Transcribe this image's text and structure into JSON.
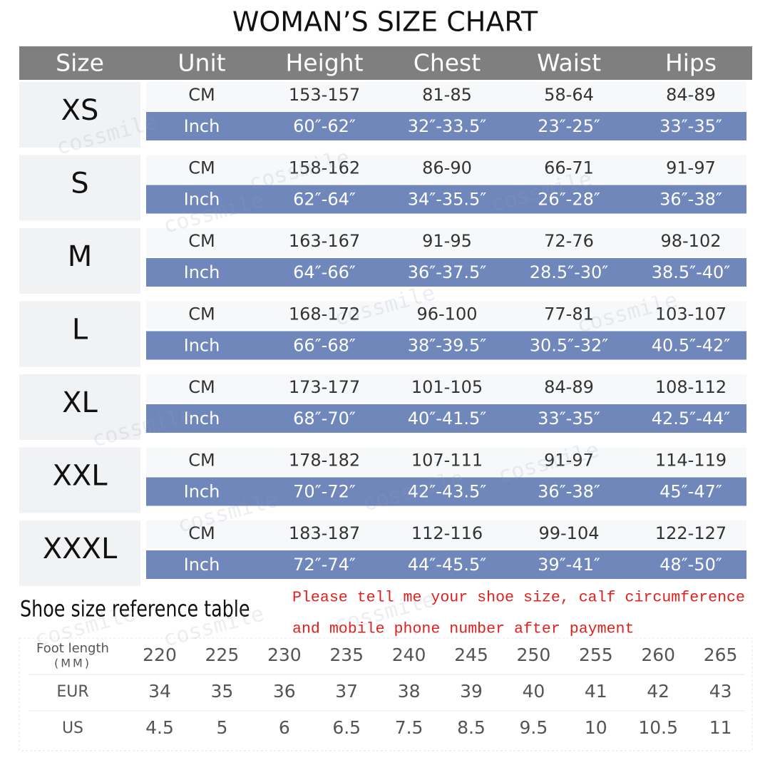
{
  "title": "WOMAN’S SIZE CHART",
  "watermark": "cossmile",
  "size_table": {
    "header": [
      "Size",
      "Unit",
      "Height",
      "Chest",
      "Waist",
      "Hips"
    ],
    "rows": [
      {
        "size": "XS",
        "cm_unit": "CM",
        "cm": [
          "153-157",
          "81-85",
          "58-64",
          "84-89"
        ],
        "inch_unit": "Inch",
        "inch": [
          "60″-62″",
          "32″-33.5″",
          "23″-25″",
          "33″-35″"
        ]
      },
      {
        "size": "S",
        "cm_unit": "CM",
        "cm": [
          "158-162",
          "86-90",
          "66-71",
          "91-97"
        ],
        "inch_unit": "Inch",
        "inch": [
          "62″-64″",
          "34″-35.5″",
          "26″-28″",
          "36″-38″"
        ]
      },
      {
        "size": "M",
        "cm_unit": "CM",
        "cm": [
          "163-167",
          "91-95",
          "72-76",
          "98-102"
        ],
        "inch_unit": "Inch",
        "inch": [
          "64″-66″",
          "36″-37.5″",
          "28.5″-30″",
          "38.5″-40″"
        ]
      },
      {
        "size": "L",
        "cm_unit": "CM",
        "cm": [
          "168-172",
          "96-100",
          "77-81",
          "103-107"
        ],
        "inch_unit": "Inch",
        "inch": [
          "66″-68″",
          "38″-39.5″",
          "30.5″-32″",
          "40.5″-42″"
        ]
      },
      {
        "size": "XL",
        "cm_unit": "CM",
        "cm": [
          "173-177",
          "101-105",
          "84-89",
          "108-112"
        ],
        "inch_unit": "Inch",
        "inch": [
          "68″-70″",
          "40″-41.5″",
          "33″-35″",
          "42.5″-44″"
        ]
      },
      {
        "size": "XXL",
        "cm_unit": "CM",
        "cm": [
          "178-182",
          "107-111",
          "91-97",
          "114-119"
        ],
        "inch_unit": "Inch",
        "inch": [
          "70″-72″",
          "42″-43.5″",
          "36″-38″",
          "45″-47″"
        ]
      },
      {
        "size": "XXXL",
        "cm_unit": "CM",
        "cm": [
          "183-187",
          "112-116",
          "99-104",
          "122-127"
        ],
        "inch_unit": "Inch",
        "inch": [
          "72″-74″",
          "44″-45.5″",
          "39″-41″",
          "48″-50″"
        ]
      }
    ]
  },
  "shoe_title": "Shoe size reference table",
  "note": [
    "Please tell me your shoe size, calf circumference",
    "and mobile phone number after payment"
  ],
  "shoe_table": {
    "rows": [
      {
        "label": [
          "Foot length",
          "(MM)"
        ],
        "values": [
          220,
          225,
          230,
          235,
          240,
          245,
          250,
          255,
          260,
          265
        ]
      },
      {
        "label": [
          "EUR"
        ],
        "values": [
          34,
          35,
          36,
          37,
          38,
          39,
          40,
          41,
          42,
          43
        ]
      },
      {
        "label": [
          "US"
        ],
        "values": [
          4.5,
          5,
          6,
          6.5,
          7.5,
          8.5,
          9.5,
          10,
          10.5,
          11
        ]
      }
    ]
  }
}
